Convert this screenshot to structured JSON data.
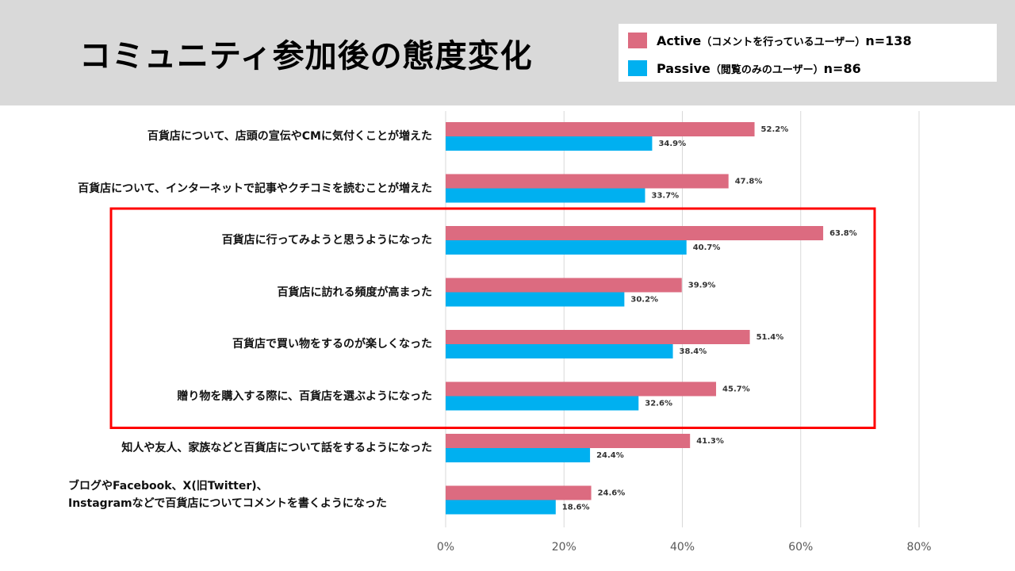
{
  "chart_data": {
    "type": "bar",
    "orientation": "horizontal",
    "title": "コミュニティ参加後の態度変化",
    "categories": [
      "百貨店について、店頭の宣伝やCMに気付くことが増えた",
      "百貨店について、インターネットで記事やクチコミを読むことが増えた",
      "百貨店に行ってみようと思うようになった",
      "百貨店に訪れる頻度が高まった",
      "百貨店で買い物をするのが楽しくなった",
      "贈り物を購入する際に、百貨店を選ぶようになった",
      "知人や友人、家族などと百貨店について話をするようになった",
      "ブログやFacebook、X(旧Twitter)、\nInstagramなどで百貨店についてコメントを書くようになった"
    ],
    "series": [
      {
        "name": "Active",
        "name_note": "（コメントを行っているユーザー）",
        "n": "n=138",
        "color": "#dc6b80",
        "values": [
          52.2,
          47.8,
          63.8,
          39.9,
          51.4,
          45.7,
          41.3,
          24.6
        ]
      },
      {
        "name": "Passive",
        "name_note": "（閲覧のみのユーザー）",
        "n": "n=86",
        "color": "#00b0f0",
        "values": [
          34.9,
          33.7,
          40.7,
          30.2,
          38.4,
          32.6,
          24.4,
          18.6
        ]
      }
    ],
    "value_labels": {
      "Active": [
        "52.2%",
        "47.8%",
        "63.8%",
        "39.9%",
        "51.4%",
        "45.7%",
        "41.3%",
        "24.6%"
      ],
      "Passive": [
        "34.9%",
        "33.7%",
        "40.7%",
        "30.2%",
        "38.4%",
        "32.6%",
        "24.4%",
        "18.6%"
      ]
    },
    "xlim": [
      0,
      80
    ],
    "xticks": [
      "0%",
      "20%",
      "40%",
      "60%",
      "80%"
    ],
    "grid": true,
    "highlight": {
      "from_category": 2,
      "to_category": 5,
      "color": "#ff0000"
    },
    "legend_position": "top-right"
  }
}
